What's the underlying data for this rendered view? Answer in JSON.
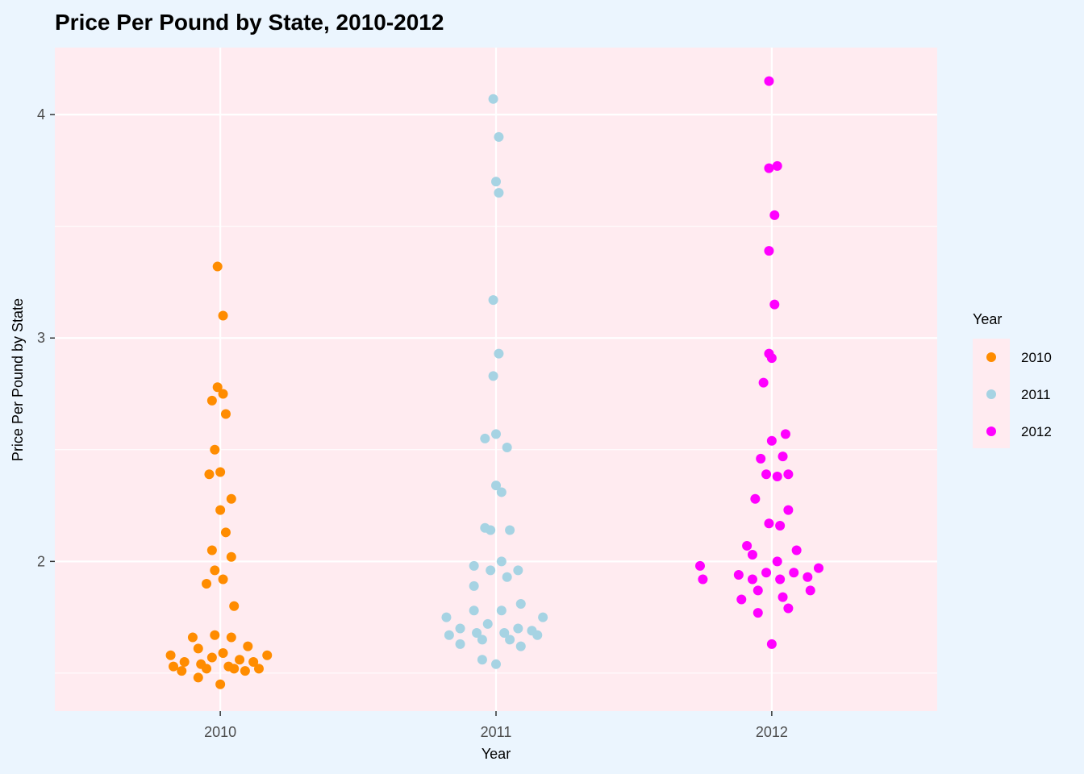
{
  "chart_data": {
    "type": "scatter",
    "subtype": "beeswarm",
    "title": "Price Per Pound by State, 2010-2012",
    "xlabel": "Year",
    "ylabel": "Price Per Pound by State",
    "categories": [
      "2010",
      "2011",
      "2012"
    ],
    "ylim": [
      1.33,
      4.3
    ],
    "yticks": [
      2,
      3,
      4
    ],
    "yticks_minor": [
      1.5,
      2.5,
      3.5
    ],
    "grid": true,
    "legend": {
      "title": "Year",
      "position": "right",
      "entries": [
        "2010",
        "2011",
        "2012"
      ]
    },
    "series": [
      {
        "name": "2010",
        "color": "#ff8c00",
        "points": [
          {
            "dx": -0.01,
            "y": 3.32
          },
          {
            "dx": 0.01,
            "y": 3.1
          },
          {
            "dx": -0.01,
            "y": 2.78
          },
          {
            "dx": 0.01,
            "y": 2.75
          },
          {
            "dx": -0.03,
            "y": 2.72
          },
          {
            "dx": 0.02,
            "y": 2.66
          },
          {
            "dx": -0.02,
            "y": 2.5
          },
          {
            "dx": 0.0,
            "y": 2.4
          },
          {
            "dx": -0.04,
            "y": 2.39
          },
          {
            "dx": 0.04,
            "y": 2.28
          },
          {
            "dx": 0.0,
            "y": 2.23
          },
          {
            "dx": 0.02,
            "y": 2.13
          },
          {
            "dx": -0.03,
            "y": 2.05
          },
          {
            "dx": 0.04,
            "y": 2.02
          },
          {
            "dx": -0.02,
            "y": 1.96
          },
          {
            "dx": 0.01,
            "y": 1.92
          },
          {
            "dx": -0.05,
            "y": 1.9
          },
          {
            "dx": 0.05,
            "y": 1.8
          },
          {
            "dx": -0.02,
            "y": 1.67
          },
          {
            "dx": -0.1,
            "y": 1.66
          },
          {
            "dx": 0.04,
            "y": 1.66
          },
          {
            "dx": 0.1,
            "y": 1.62
          },
          {
            "dx": -0.08,
            "y": 1.61
          },
          {
            "dx": 0.01,
            "y": 1.59
          },
          {
            "dx": -0.18,
            "y": 1.58
          },
          {
            "dx": 0.17,
            "y": 1.58
          },
          {
            "dx": -0.03,
            "y": 1.57
          },
          {
            "dx": 0.07,
            "y": 1.56
          },
          {
            "dx": -0.13,
            "y": 1.55
          },
          {
            "dx": 0.12,
            "y": 1.55
          },
          {
            "dx": -0.07,
            "y": 1.54
          },
          {
            "dx": 0.03,
            "y": 1.53
          },
          {
            "dx": -0.17,
            "y": 1.53
          },
          {
            "dx": 0.05,
            "y": 1.52
          },
          {
            "dx": 0.14,
            "y": 1.52
          },
          {
            "dx": -0.05,
            "y": 1.52
          },
          {
            "dx": 0.09,
            "y": 1.51
          },
          {
            "dx": -0.14,
            "y": 1.51
          },
          {
            "dx": -0.08,
            "y": 1.48
          },
          {
            "dx": 0.0,
            "y": 1.45
          }
        ]
      },
      {
        "name": "2011",
        "color": "#a6d3e3",
        "points": [
          {
            "dx": -0.01,
            "y": 4.07
          },
          {
            "dx": 0.01,
            "y": 3.9
          },
          {
            "dx": 0.0,
            "y": 3.7
          },
          {
            "dx": 0.01,
            "y": 3.65
          },
          {
            "dx": -0.01,
            "y": 3.17
          },
          {
            "dx": 0.01,
            "y": 2.93
          },
          {
            "dx": -0.01,
            "y": 2.83
          },
          {
            "dx": 0.0,
            "y": 2.57
          },
          {
            "dx": -0.04,
            "y": 2.55
          },
          {
            "dx": 0.04,
            "y": 2.51
          },
          {
            "dx": 0.0,
            "y": 2.34
          },
          {
            "dx": 0.02,
            "y": 2.31
          },
          {
            "dx": -0.04,
            "y": 2.15
          },
          {
            "dx": 0.05,
            "y": 2.14
          },
          {
            "dx": -0.02,
            "y": 2.14
          },
          {
            "dx": 0.02,
            "y": 2.0
          },
          {
            "dx": -0.08,
            "y": 1.98
          },
          {
            "dx": -0.02,
            "y": 1.96
          },
          {
            "dx": 0.08,
            "y": 1.96
          },
          {
            "dx": 0.04,
            "y": 1.93
          },
          {
            "dx": -0.08,
            "y": 1.89
          },
          {
            "dx": 0.09,
            "y": 1.81
          },
          {
            "dx": -0.08,
            "y": 1.78
          },
          {
            "dx": 0.02,
            "y": 1.78
          },
          {
            "dx": -0.18,
            "y": 1.75
          },
          {
            "dx": 0.17,
            "y": 1.75
          },
          {
            "dx": -0.03,
            "y": 1.72
          },
          {
            "dx": 0.08,
            "y": 1.7
          },
          {
            "dx": -0.13,
            "y": 1.7
          },
          {
            "dx": 0.13,
            "y": 1.69
          },
          {
            "dx": -0.07,
            "y": 1.68
          },
          {
            "dx": 0.03,
            "y": 1.68
          },
          {
            "dx": -0.17,
            "y": 1.67
          },
          {
            "dx": 0.15,
            "y": 1.67
          },
          {
            "dx": -0.05,
            "y": 1.65
          },
          {
            "dx": 0.05,
            "y": 1.65
          },
          {
            "dx": -0.13,
            "y": 1.63
          },
          {
            "dx": 0.09,
            "y": 1.62
          },
          {
            "dx": -0.05,
            "y": 1.56
          },
          {
            "dx": 0.0,
            "y": 1.54
          }
        ]
      },
      {
        "name": "2012",
        "color": "#ff00ff",
        "points": [
          {
            "dx": -0.01,
            "y": 4.15
          },
          {
            "dx": 0.02,
            "y": 3.77
          },
          {
            "dx": -0.01,
            "y": 3.76
          },
          {
            "dx": 0.01,
            "y": 3.55
          },
          {
            "dx": -0.01,
            "y": 3.39
          },
          {
            "dx": 0.01,
            "y": 3.15
          },
          {
            "dx": -0.01,
            "y": 2.93
          },
          {
            "dx": 0.0,
            "y": 2.91
          },
          {
            "dx": -0.03,
            "y": 2.8
          },
          {
            "dx": 0.05,
            "y": 2.57
          },
          {
            "dx": 0.0,
            "y": 2.54
          },
          {
            "dx": 0.04,
            "y": 2.47
          },
          {
            "dx": -0.04,
            "y": 2.46
          },
          {
            "dx": -0.02,
            "y": 2.39
          },
          {
            "dx": 0.06,
            "y": 2.39
          },
          {
            "dx": 0.02,
            "y": 2.38
          },
          {
            "dx": -0.06,
            "y": 2.28
          },
          {
            "dx": 0.06,
            "y": 2.23
          },
          {
            "dx": -0.01,
            "y": 2.17
          },
          {
            "dx": 0.03,
            "y": 2.16
          },
          {
            "dx": -0.09,
            "y": 2.07
          },
          {
            "dx": 0.09,
            "y": 2.05
          },
          {
            "dx": -0.07,
            "y": 2.03
          },
          {
            "dx": 0.02,
            "y": 2.0
          },
          {
            "dx": -0.26,
            "y": 1.98
          },
          {
            "dx": 0.17,
            "y": 1.97
          },
          {
            "dx": -0.02,
            "y": 1.95
          },
          {
            "dx": 0.08,
            "y": 1.95
          },
          {
            "dx": -0.12,
            "y": 1.94
          },
          {
            "dx": 0.13,
            "y": 1.93
          },
          {
            "dx": -0.07,
            "y": 1.92
          },
          {
            "dx": 0.03,
            "y": 1.92
          },
          {
            "dx": -0.25,
            "y": 1.92
          },
          {
            "dx": -0.05,
            "y": 1.87
          },
          {
            "dx": 0.14,
            "y": 1.87
          },
          {
            "dx": 0.04,
            "y": 1.84
          },
          {
            "dx": -0.11,
            "y": 1.83
          },
          {
            "dx": 0.06,
            "y": 1.79
          },
          {
            "dx": -0.05,
            "y": 1.77
          },
          {
            "dx": 0.0,
            "y": 1.63
          }
        ]
      }
    ]
  }
}
